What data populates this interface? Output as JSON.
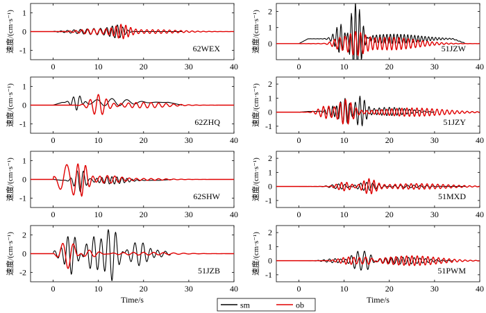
{
  "figure": {
    "xlabel": "Time/s",
    "ylabel": "速度/(cm·s⁻¹)",
    "legend": {
      "entries": [
        "sm",
        "ob"
      ],
      "colors": [
        "#000000",
        "#e00000"
      ],
      "placement": "bottom-center"
    }
  },
  "chart_data": [
    {
      "type": "line",
      "station": "62WEX",
      "xlim": [
        -5,
        40
      ],
      "ylim": [
        -1.5,
        1.5
      ],
      "xticks": [
        0,
        10,
        20,
        30,
        40
      ],
      "yticks": [
        -1,
        0,
        1
      ],
      "show_xlabel": false,
      "series": [
        {
          "name": "sm",
          "color": "#000000",
          "end": 28.5,
          "bursts": [
            [
              10.5,
              0.15,
              0.7,
              2.5
            ],
            [
              14.2,
              0.4,
              0.85,
              1.3
            ],
            [
              6,
              0.1,
              0.7,
              3
            ]
          ],
          "bias": 0
        },
        {
          "name": "ob",
          "color": "#e00000",
          "end": 40,
          "bursts": [
            [
              15,
              0.45,
              0.9,
              1.6
            ],
            [
              9,
              0.15,
              0.75,
              3
            ],
            [
              22,
              0.1,
              0.8,
              6
            ]
          ],
          "bias": 0
        }
      ]
    },
    {
      "type": "line",
      "station": "51JZW",
      "xlim": [
        -5,
        40
      ],
      "ylim": [
        -1,
        2.5
      ],
      "xticks": [
        0,
        10,
        20,
        30,
        40
      ],
      "yticks": [
        0,
        1,
        2
      ],
      "show_xlabel": false,
      "series": [
        {
          "name": "sm",
          "color": "#000000",
          "end": 37,
          "bursts": [
            [
              12.5,
              2.2,
              1.1,
              1.3
            ],
            [
              9.3,
              1.0,
              1.1,
              1.2
            ],
            [
              21,
              0.3,
              1.3,
              6
            ]
          ],
          "bias": 0.3
        },
        {
          "name": "ob",
          "color": "#e00000",
          "end": 40,
          "bursts": [
            [
              12.5,
              0.6,
              0.9,
              1.8
            ],
            [
              20,
              0.4,
              0.95,
              6
            ],
            [
              9,
              0.4,
              0.9,
              1.5
            ]
          ],
          "bias": 0
        }
      ]
    },
    {
      "type": "line",
      "station": "62ZHQ",
      "xlim": [
        -5,
        40
      ],
      "ylim": [
        -1.5,
        1.5
      ],
      "xticks": [
        0,
        10,
        20,
        30,
        40
      ],
      "yticks": [
        -1,
        0,
        1
      ],
      "show_xlabel": false,
      "series": [
        {
          "name": "sm",
          "color": "#000000",
          "end": 28.5,
          "bursts": [
            [
              5.2,
              -0.4,
              0.7,
              1.0
            ],
            [
              13,
              0.2,
              0.3,
              4
            ]
          ],
          "bias": 0.15
        },
        {
          "name": "ob",
          "color": "#e00000",
          "end": 40,
          "bursts": [
            [
              10,
              0.55,
              0.55,
              1.6
            ],
            [
              20,
              0.15,
              0.6,
              5
            ]
          ],
          "bias": 0
        }
      ]
    },
    {
      "type": "line",
      "station": "51JZY",
      "xlim": [
        -5,
        40
      ],
      "ylim": [
        -1.5,
        2.5
      ],
      "xticks": [
        0,
        10,
        20,
        30,
        40
      ],
      "yticks": [
        -1,
        0,
        1,
        2
      ],
      "show_xlabel": false,
      "series": [
        {
          "name": "sm",
          "color": "#000000",
          "end": 30,
          "bursts": [
            [
              10.2,
              0.9,
              1.0,
              1.1
            ],
            [
              13.5,
              1.05,
              1.0,
              1.1
            ],
            [
              7.5,
              0.4,
              1.1,
              1.2
            ],
            [
              20,
              0.3,
              0.9,
              4
            ]
          ],
          "bias": 0.05
        },
        {
          "name": "ob",
          "color": "#e00000",
          "end": 40,
          "bursts": [
            [
              10.3,
              0.9,
              0.85,
              1.5
            ],
            [
              6,
              -0.45,
              0.85,
              1.5
            ],
            [
              25,
              0.3,
              0.9,
              7
            ]
          ],
          "bias": 0
        }
      ]
    },
    {
      "type": "line",
      "station": "62SHW",
      "xlim": [
        -5,
        40
      ],
      "ylim": [
        -1.5,
        1.5
      ],
      "xticks": [
        0,
        10,
        20,
        30,
        40
      ],
      "yticks": [
        -1,
        0,
        1
      ],
      "show_xlabel": false,
      "series": [
        {
          "name": "sm",
          "color": "#000000",
          "end": 26.5,
          "bursts": [
            [
              6,
              -0.6,
              0.7,
              1.2
            ],
            [
              13,
              0.2,
              0.9,
              3
            ]
          ],
          "bias": -0.05
        },
        {
          "name": "ob",
          "color": "#e00000",
          "end": 40,
          "bursts": [
            [
              3,
              0.8,
              0.33,
              1.6
            ],
            [
              6.3,
              -0.95,
              0.55,
              1.2
            ],
            [
              12,
              0.2,
              0.6,
              3
            ],
            [
              20,
              0.05,
              0.6,
              5
            ]
          ],
          "bias": 0
        }
      ]
    },
    {
      "type": "line",
      "station": "51MXD",
      "xlim": [
        -5,
        40
      ],
      "ylim": [
        -1.5,
        2.5
      ],
      "xticks": [
        0,
        10,
        20,
        30,
        40
      ],
      "yticks": [
        -1,
        0,
        1,
        2
      ],
      "show_xlabel": false,
      "series": [
        {
          "name": "sm",
          "color": "#000000",
          "end": 37,
          "bursts": [
            [
              15,
              0.3,
              0.75,
              2.5
            ],
            [
              9.5,
              -0.2,
              0.7,
              2
            ],
            [
              24,
              0.1,
              0.7,
              4
            ]
          ],
          "bias": 0
        },
        {
          "name": "ob",
          "color": "#e00000",
          "end": 40,
          "bursts": [
            [
              15.5,
              0.5,
              0.9,
              1.4
            ],
            [
              10,
              -0.3,
              0.85,
              1.5
            ],
            [
              26,
              0.2,
              0.85,
              7
            ]
          ],
          "bias": 0
        }
      ]
    },
    {
      "type": "line",
      "station": "51JZB",
      "xlim": [
        -5,
        40
      ],
      "ylim": [
        -3,
        3
      ],
      "xticks": [
        0,
        10,
        20,
        30,
        40
      ],
      "yticks": [
        -2,
        0,
        2
      ],
      "show_xlabel": true,
      "series": [
        {
          "name": "sm",
          "color": "#000000",
          "end": 26,
          "bursts": [
            [
              13,
              -2.8,
              0.6,
              1.3
            ],
            [
              4,
              -2.3,
              0.6,
              1.3
            ],
            [
              9,
              1.8,
              0.6,
              1.7
            ],
            [
              19,
              -1.3,
              0.55,
              2
            ],
            [
              2,
              0.6,
              0.6,
              1.5
            ],
            [
              23,
              0.4,
              0.55,
              2
            ]
          ],
          "bias": 0
        },
        {
          "name": "ob",
          "color": "#e00000",
          "end": 40,
          "bursts": [
            [
              3.3,
              -1.6,
              0.4,
              1.4
            ],
            [
              8,
              0.4,
              0.45,
              2
            ],
            [
              20,
              0.15,
              0.45,
              6
            ]
          ],
          "bias": 0
        }
      ]
    },
    {
      "type": "line",
      "station": "51PWM",
      "xlim": [
        -5,
        40
      ],
      "ylim": [
        -1.5,
        2.5
      ],
      "xticks": [
        0,
        10,
        20,
        30,
        40
      ],
      "yticks": [
        -1,
        0,
        1,
        2
      ],
      "show_xlabel": true,
      "series": [
        {
          "name": "sm",
          "color": "#000000",
          "end": 34,
          "bursts": [
            [
              13,
              0.6,
              0.7,
              1.3
            ],
            [
              15.3,
              -0.55,
              0.7,
              1.0
            ],
            [
              23,
              0.25,
              0.8,
              5
            ],
            [
              8,
              0.15,
              0.8,
              2
            ]
          ],
          "bias": 0
        },
        {
          "name": "ob",
          "color": "#e00000",
          "end": 40,
          "bursts": [
            [
              15.5,
              -0.35,
              0.75,
              1.2
            ],
            [
              25,
              0.35,
              0.85,
              6
            ],
            [
              11,
              0.25,
              0.85,
              2
            ]
          ],
          "bias": 0
        }
      ]
    }
  ]
}
